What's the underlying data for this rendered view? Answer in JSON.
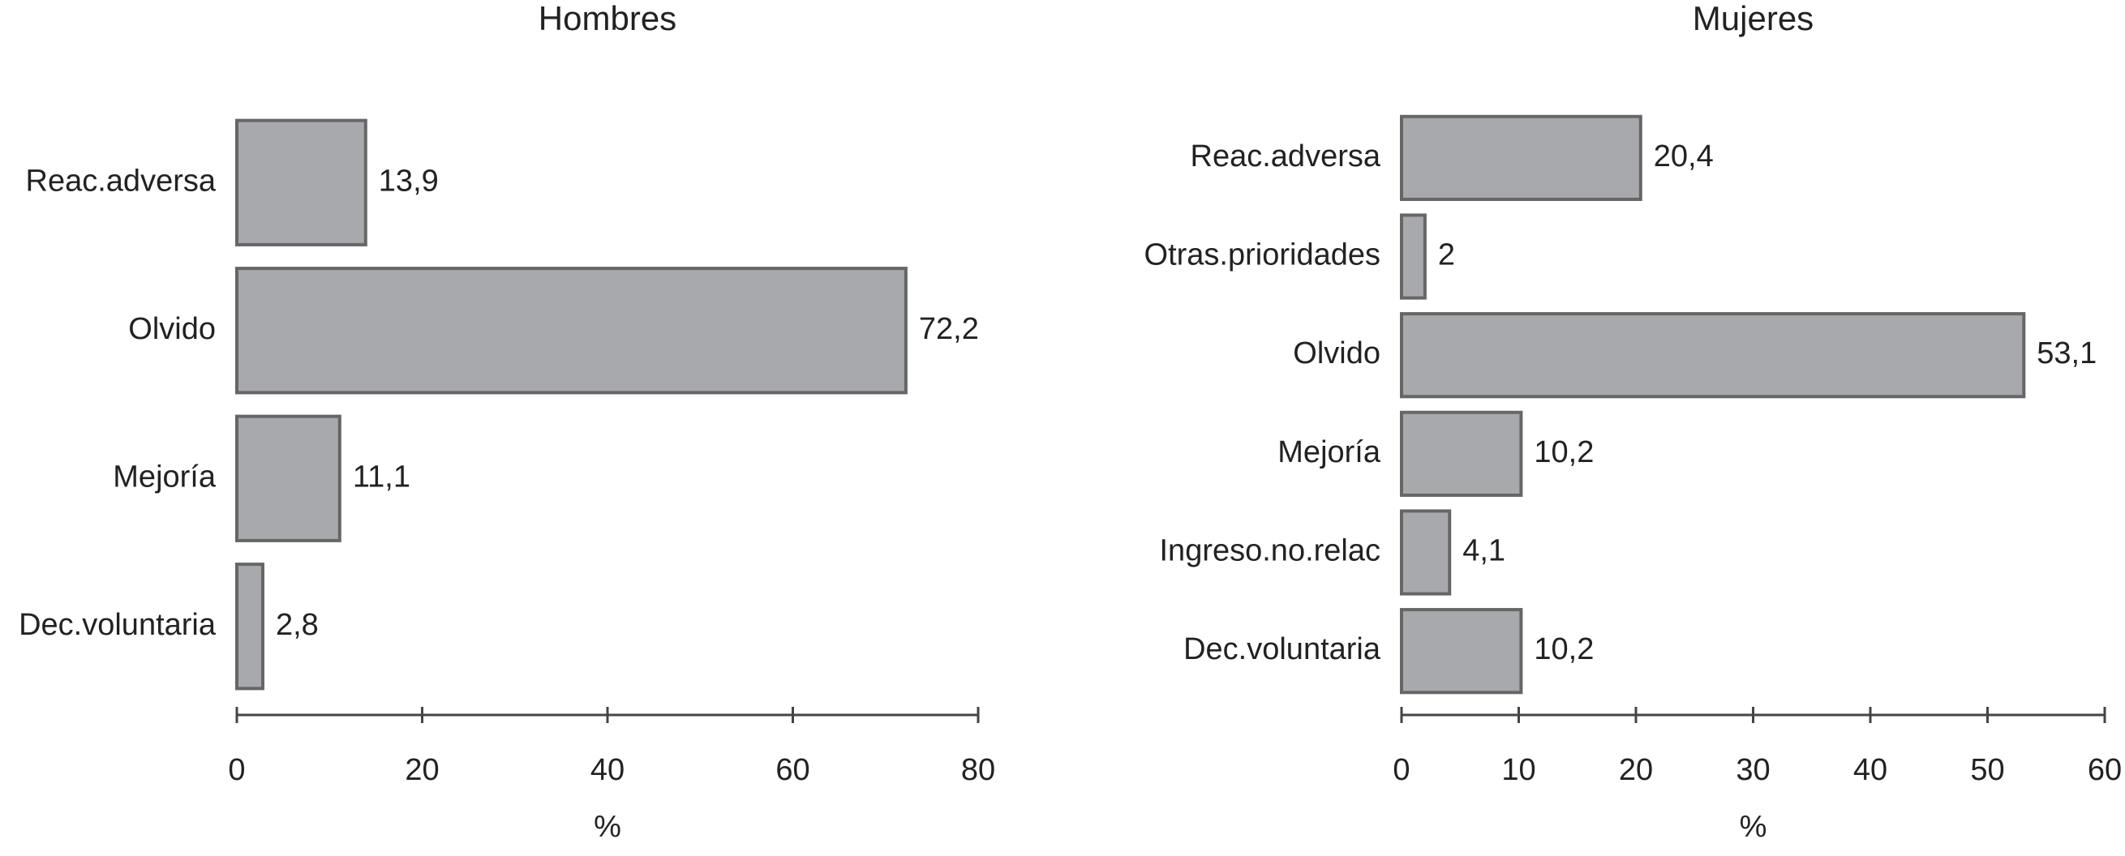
{
  "chart_data": [
    {
      "type": "barh",
      "title": "Hombres",
      "categories": [
        "Reac.adversa",
        "Olvido",
        "Mejoría",
        "Dec.voluntaria"
      ],
      "values": [
        13.9,
        72.2,
        11.1,
        2.8
      ],
      "value_labels": [
        "13,9",
        "72,2",
        "11,1",
        "2,8"
      ],
      "color": "#a8a9ad",
      "xlabel": "%",
      "xlim": [
        0,
        80
      ],
      "xticks": [
        0,
        20,
        40,
        60,
        80
      ]
    },
    {
      "type": "barh",
      "title": "Mujeres",
      "categories": [
        "Reac.adversa",
        "Otras.prioridades",
        "Olvido",
        "Mejoría",
        "Ingreso.no.relac",
        "Dec.voluntaria"
      ],
      "values": [
        20.4,
        2,
        53.1,
        10.2,
        4.1,
        10.2
      ],
      "value_labels": [
        "20,4",
        "2",
        "53,1",
        "10,2",
        "4,1",
        "10,2"
      ],
      "color": "#a8a9ad",
      "xlabel": "%",
      "xlim": [
        0,
        60
      ],
      "xticks": [
        0,
        10,
        20,
        30,
        40,
        50,
        60
      ]
    }
  ]
}
